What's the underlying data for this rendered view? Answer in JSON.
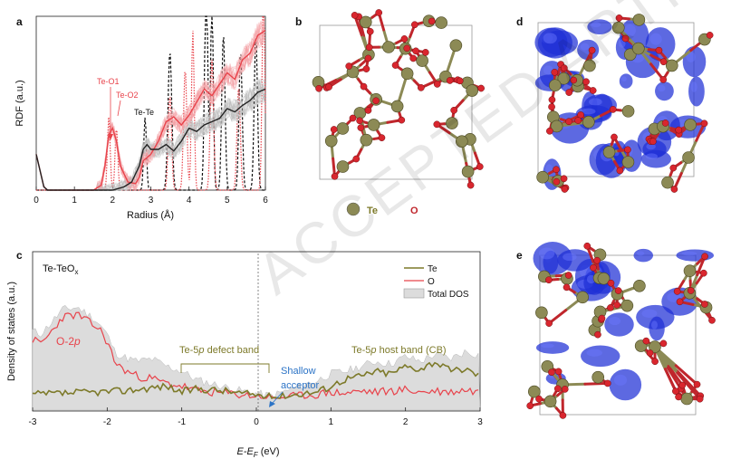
{
  "panels": {
    "a": "a",
    "b": "b",
    "c": "c",
    "d": "d",
    "e": "e"
  },
  "panel_a": {
    "ylabel": "RDF (a.u.)",
    "xlabel": "Radius (Å)",
    "xticks": [
      "0",
      "1",
      "2",
      "3",
      "4",
      "5",
      "6"
    ],
    "annotations": {
      "te_o1": "Te-O1",
      "te_o2": "Te-O2",
      "te_te": "Te-Te"
    }
  },
  "panel_b": {
    "legend_te": "Te",
    "legend_o": "O"
  },
  "panel_c": {
    "inset": "Te-TeO",
    "inset_sub": "x",
    "ylabel": "Density of states (a.u.)",
    "xlabel_prefix": "E",
    "xlabel_mid": "-E",
    "xlabel_sub": "F",
    "xlabel_suffix": " (eV)",
    "xticks": [
      "-3",
      "-2",
      "-1",
      "0",
      "1",
      "2",
      "3"
    ],
    "o2p": "O-2",
    "o2p_italic": "p",
    "defect_band": [
      "Te-5",
      "p",
      " defect band"
    ],
    "host_band": [
      "Te-5",
      "p",
      " host band (CB)"
    ],
    "shallow": [
      "Shallow",
      "acceptor"
    ],
    "legend": [
      "Te",
      "O",
      "Total DOS"
    ]
  },
  "watermark": "ACCEPTED ARTICLE PREVIEW",
  "colors": {
    "te": "#7d7a2a",
    "o": "#e8434b",
    "total": "#dcdcdc",
    "accent_blue": "#2b73c6",
    "isosurface": "#1f2fd6",
    "bond_o": "#c0262c",
    "sphere_te": "#8c8a55"
  },
  "chart_data": [
    {
      "type": "line",
      "title": "",
      "xlabel": "Radius (Å)",
      "ylabel": "RDF (a.u.)",
      "xlim": [
        0,
        6
      ],
      "grid": false,
      "series": [
        {
          "name": "",
          "x": [
            0,
            0.1,
            0.2,
            0.3,
            0.5,
            1.0,
            1.5,
            1.7,
            1.8,
            1.9,
            2.0,
            2.1,
            2.2,
            2.4,
            2.6,
            2.7,
            2.8,
            2.9,
            3.0,
            3.2,
            3.4,
            3.6,
            3.8,
            4.0,
            4.2,
            4.4,
            4.6,
            4.8,
            5.0,
            5.2,
            5.4,
            5.6,
            5.8,
            6.0
          ],
          "y": [
            0.22,
            0.12,
            0.02,
            0,
            0,
            0,
            0,
            0.03,
            0.15,
            0.34,
            0.38,
            0.3,
            0.15,
            0.05,
            0.04,
            0.08,
            0.18,
            0.2,
            0.22,
            0.3,
            0.42,
            0.45,
            0.4,
            0.46,
            0.54,
            0.62,
            0.58,
            0.65,
            0.72,
            0.68,
            0.8,
            0.84,
            0.95,
            0.98
          ]
        },
        {
          "name": "",
          "x": [
            0,
            0.1,
            0.2,
            0.3,
            0.5,
            1.0,
            1.5,
            2.0,
            2.3,
            2.5,
            2.7,
            2.8,
            2.9,
            3.0,
            3.2,
            3.4,
            3.6,
            3.8,
            4.0,
            4.2,
            4.4,
            4.6,
            4.8,
            5.0,
            5.2,
            5.4,
            5.6,
            5.8,
            6.0
          ],
          "y": [
            0.22,
            0.12,
            0.02,
            0,
            0,
            0,
            0,
            0,
            0.02,
            0.05,
            0.15,
            0.25,
            0.28,
            0.25,
            0.25,
            0.28,
            0.24,
            0.3,
            0.38,
            0.36,
            0.4,
            0.42,
            0.44,
            0.5,
            0.48,
            0.52,
            0.55,
            0.6,
            0.62
          ]
        }
      ]
    },
    {
      "type": "area",
      "title": "",
      "xlabel": "E-EF (eV)",
      "ylabel": "Density of states (a.u.)",
      "xlim": [
        -3,
        3
      ],
      "grid": false,
      "series": [
        {
          "name": "Total DOS",
          "x": [
            -3,
            -2.9,
            -2.8,
            -2.6,
            -2.4,
            -2.2,
            -2.1,
            -2.0,
            -1.9,
            -1.8,
            -1.6,
            -1.4,
            -1.2,
            -1.0,
            -0.8,
            -0.6,
            -0.4,
            -0.2,
            0,
            0.2,
            0.4,
            0.6,
            0.8,
            1.0,
            1.2,
            1.4,
            1.6,
            1.8,
            2.0,
            2.2,
            2.4,
            2.6,
            2.8,
            3.0
          ],
          "y": [
            0.55,
            0.52,
            0.58,
            0.72,
            0.74,
            0.66,
            0.6,
            0.52,
            0.38,
            0.34,
            0.3,
            0.32,
            0.26,
            0.22,
            0.15,
            0.12,
            0.09,
            0.06,
            0.04,
            0.02,
            0.06,
            0.1,
            0.14,
            0.2,
            0.22,
            0.26,
            0.3,
            0.28,
            0.34,
            0.3,
            0.36,
            0.32,
            0.38,
            0.35
          ]
        },
        {
          "name": "Te",
          "x": [
            -3,
            -2.6,
            -2.2,
            -1.8,
            -1.5,
            -1.2,
            -1.0,
            -0.8,
            -0.6,
            -0.4,
            -0.2,
            0,
            0.2,
            0.4,
            0.6,
            0.8,
            1.0,
            1.2,
            1.4,
            1.6,
            1.8,
            2.0,
            2.2,
            2.4,
            2.6,
            2.8,
            3.0
          ],
          "y": [
            0.03,
            0.04,
            0.05,
            0.06,
            0.08,
            0.1,
            0.05,
            0.08,
            0.07,
            0.06,
            0.04,
            0.03,
            0.01,
            0.02,
            0.04,
            0.05,
            0.1,
            0.16,
            0.18,
            0.22,
            0.2,
            0.26,
            0.24,
            0.3,
            0.22,
            0.24,
            0.18
          ]
        },
        {
          "name": "O",
          "x": [
            -3,
            -2.9,
            -2.8,
            -2.6,
            -2.4,
            -2.2,
            -2.1,
            -2.0,
            -1.9,
            -1.8,
            -1.6,
            -1.4,
            -1.2,
            -1.0,
            -0.8,
            -0.6,
            -0.4,
            -0.2,
            0,
            0.2,
            0.4,
            0.6,
            0.8,
            1.0,
            1.2,
            1.4,
            1.6,
            1.8,
            2.0,
            2.2,
            2.4,
            2.6,
            2.8,
            3.0
          ],
          "y": [
            0.48,
            0.44,
            0.5,
            0.66,
            0.68,
            0.6,
            0.56,
            0.46,
            0.3,
            0.24,
            0.18,
            0.16,
            0.12,
            0.1,
            0.06,
            0.05,
            0.04,
            0.03,
            0.02,
            0.0,
            0.01,
            0.02,
            0.03,
            0.05,
            0.04,
            0.06,
            0.05,
            0.06,
            0.07,
            0.05,
            0.06,
            0.05,
            0.07,
            0.05
          ]
        }
      ]
    }
  ]
}
